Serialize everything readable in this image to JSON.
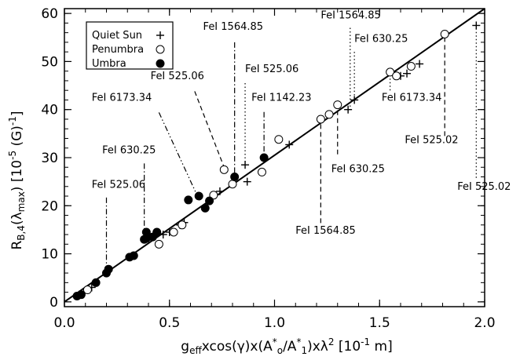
{
  "chart_data": {
    "type": "scatter",
    "xlabel_parts": {
      "pre": "g",
      "sub": "eff",
      "mid1": "xcos(γ)x(A",
      "sub0": "o",
      "mid2": "/A",
      "sub1": "1",
      "mid3": ")xλ",
      "sup": "2",
      "unit": " [10",
      "unit_sup": "-1",
      "unit_end": " m]"
    },
    "ylabel_parts": {
      "pre": "R",
      "sub": "B,4",
      "mid": "(λ",
      "sub2": "max",
      "mid2": ")  [10",
      "sup": "-5",
      "unit": " (G)",
      "unit_sup": "-1",
      "end": "]"
    },
    "xlim": [
      0,
      2.0
    ],
    "ylim": [
      -1,
      61
    ],
    "xticks": [
      0.0,
      0.5,
      1.0,
      1.5,
      2.0
    ],
    "xtick_labels": [
      "0.0",
      "0.5",
      "1.0",
      "1.5",
      "2.0"
    ],
    "yticks": [
      0,
      10,
      20,
      30,
      40,
      50,
      60
    ],
    "ytick_labels": [
      "0",
      "10",
      "20",
      "30",
      "40",
      "50",
      "60"
    ],
    "grid": false,
    "legend_position": "top-left",
    "series": [
      {
        "name": "Quiet Sun",
        "marker": "plus",
        "points": [
          [
            0.07,
            1.5
          ],
          [
            0.13,
            3.0
          ],
          [
            0.2,
            6.3
          ],
          [
            0.32,
            9.5
          ],
          [
            0.47,
            14.0
          ],
          [
            0.5,
            14.5
          ],
          [
            0.55,
            16.0
          ],
          [
            0.57,
            16.5
          ],
          [
            0.67,
            19.5
          ],
          [
            0.74,
            23.0
          ],
          [
            0.86,
            28.5
          ],
          [
            0.87,
            25.0
          ],
          [
            1.07,
            32.7
          ],
          [
            1.35,
            40.0
          ],
          [
            1.38,
            42.0
          ],
          [
            1.6,
            47.0
          ],
          [
            1.63,
            47.5
          ],
          [
            1.69,
            49.5
          ],
          [
            1.96,
            57.5
          ]
        ]
      },
      {
        "name": "Penumbra",
        "marker": "open-circle",
        "points": [
          [
            0.11,
            2.5
          ],
          [
            0.45,
            12.0
          ],
          [
            0.52,
            14.5
          ],
          [
            0.56,
            16.0
          ],
          [
            0.71,
            22.2
          ],
          [
            0.76,
            27.5
          ],
          [
            0.8,
            24.5
          ],
          [
            0.94,
            27.0
          ],
          [
            1.02,
            33.8
          ],
          [
            1.22,
            38.0
          ],
          [
            1.26,
            39.0
          ],
          [
            1.3,
            41.0
          ],
          [
            1.55,
            47.8
          ],
          [
            1.58,
            47.0
          ],
          [
            1.65,
            49.0
          ],
          [
            1.81,
            55.7
          ]
        ]
      },
      {
        "name": "Umbra",
        "marker": "filled-circle",
        "points": [
          [
            0.06,
            1.2
          ],
          [
            0.08,
            1.5
          ],
          [
            0.15,
            4.0
          ],
          [
            0.2,
            6.0
          ],
          [
            0.21,
            6.8
          ],
          [
            0.31,
            9.3
          ],
          [
            0.33,
            9.6
          ],
          [
            0.38,
            13.0
          ],
          [
            0.39,
            14.5
          ],
          [
            0.39,
            13.2
          ],
          [
            0.42,
            13.5
          ],
          [
            0.44,
            14.5
          ],
          [
            0.59,
            21.2
          ],
          [
            0.64,
            22.0
          ],
          [
            0.67,
            19.5
          ],
          [
            0.69,
            21.0
          ],
          [
            0.81,
            26.0
          ],
          [
            0.95,
            30.0
          ]
        ]
      }
    ],
    "fit_line": {
      "x": [
        0.0,
        2.0
      ],
      "y": [
        0.0,
        61.0
      ]
    },
    "annotations": [
      {
        "text": "FeI 525.06",
        "text_pos": [
          0.13,
          23.7
        ],
        "anchor": "start",
        "style": "dash-dot",
        "from": [
          0.2,
          21.7
        ],
        "to": [
          0.2,
          6.5
        ]
      },
      {
        "text": "FeI 630.25",
        "text_pos": [
          0.18,
          30.9
        ],
        "anchor": "start",
        "style": "dash-dot",
        "from": [
          0.38,
          28.8
        ],
        "to": [
          0.38,
          14.5
        ]
      },
      {
        "text": "FeI 6173.34",
        "text_pos": [
          0.13,
          41.8
        ],
        "anchor": "start",
        "style": "dash-dot-dot",
        "from": [
          0.45,
          39.4
        ],
        "to": [
          0.63,
          22.3
        ]
      },
      {
        "text": "FeI 525.06",
        "text_pos": [
          0.41,
          46.3
        ],
        "anchor": "start",
        "style": "dashed",
        "from": [
          0.62,
          43.8
        ],
        "to": [
          0.76,
          28.0
        ]
      },
      {
        "text": "FeI 1564.85",
        "text_pos": [
          0.66,
          56.6
        ],
        "anchor": "start",
        "style": "dash-dot",
        "from": [
          0.81,
          54.0
        ],
        "to": [
          0.81,
          26.5
        ]
      },
      {
        "text": "FeI 525.06",
        "text_pos": [
          0.86,
          47.8
        ],
        "anchor": "start",
        "style": "dotted",
        "from": [
          0.86,
          45.5
        ],
        "to": [
          0.86,
          29.0
        ]
      },
      {
        "text": "FeI 1142.23",
        "text_pos": [
          0.89,
          41.8
        ],
        "anchor": "start",
        "style": "dash-dot",
        "from": [
          0.95,
          39.5
        ],
        "to": [
          0.95,
          30.0
        ]
      },
      {
        "text": "FeI 1564.85",
        "text_pos": [
          1.22,
          59.0
        ],
        "anchor": "start",
        "style": "dotted",
        "from": [
          1.36,
          57.0
        ],
        "to": [
          1.36,
          40.5
        ]
      },
      {
        "text": "FeI 630.25",
        "text_pos": [
          1.38,
          54.1
        ],
        "anchor": "start",
        "style": "dotted",
        "from": [
          1.38,
          52.0
        ],
        "to": [
          1.38,
          42.5
        ]
      },
      {
        "text": "FeI 6173.34",
        "text_pos": [
          1.51,
          41.8
        ],
        "anchor": "start",
        "style": "dotted",
        "from": [
          1.55,
          44.0
        ],
        "to": [
          1.55,
          48.0
        ]
      },
      {
        "text": "FeI 525.02",
        "text_pos": [
          1.62,
          33.0
        ],
        "anchor": "start",
        "style": "dashed",
        "from": [
          1.81,
          34.5
        ],
        "to": [
          1.81,
          55.5
        ]
      },
      {
        "text": "FeI 630.25",
        "text_pos": [
          1.27,
          27.0
        ],
        "anchor": "start",
        "style": "dashed",
        "from": [
          1.3,
          30.7
        ],
        "to": [
          1.3,
          40.5
        ]
      },
      {
        "text": "FeI 1564.85",
        "text_pos": [
          1.1,
          14.2
        ],
        "anchor": "start",
        "style": "dashed",
        "from": [
          1.22,
          16.4
        ],
        "to": [
          1.22,
          37.5
        ]
      },
      {
        "text": "FeI 525.02",
        "text_pos": [
          1.87,
          23.3
        ],
        "anchor": "start",
        "style": "dotted",
        "from": [
          1.96,
          25.8
        ],
        "to": [
          1.96,
          57.5
        ]
      }
    ]
  }
}
